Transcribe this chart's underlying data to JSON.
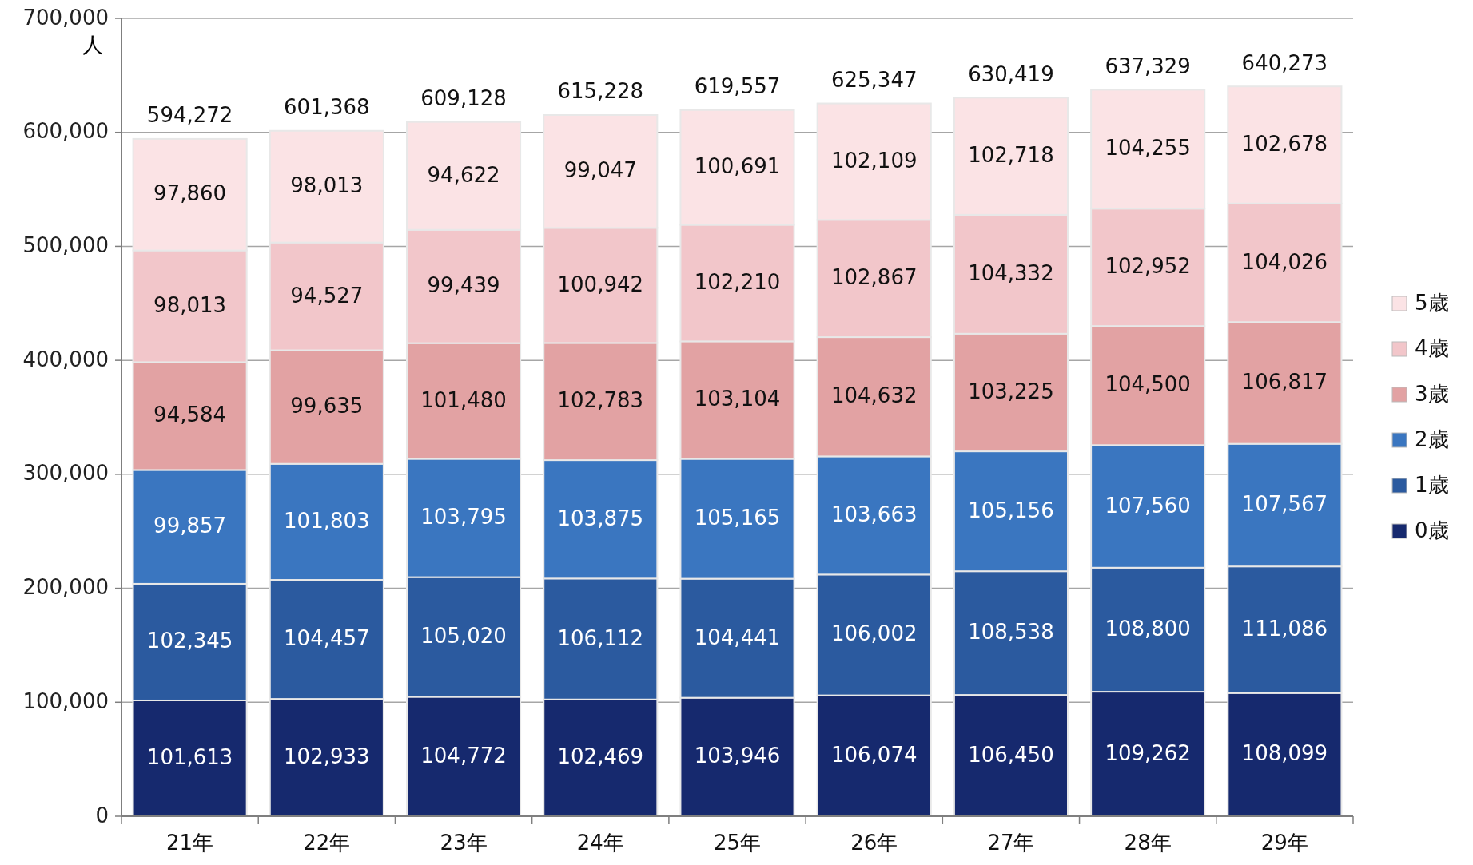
{
  "chart_data": {
    "type": "bar",
    "stacked": true,
    "ylabel": "人",
    "categories": [
      "21年",
      "22年",
      "23年",
      "24年",
      "25年",
      "26年",
      "27年",
      "28年",
      "29年"
    ],
    "series": [
      {
        "name": "0歳",
        "color": "#16296e",
        "values": [
          101613,
          102933,
          104772,
          102469,
          103946,
          106074,
          106450,
          109262,
          108099
        ],
        "value_labels": [
          "101,613",
          "102,933",
          "104,772",
          "102,469",
          "103,946",
          "106,074",
          "106,450",
          "109,262",
          "108,099"
        ]
      },
      {
        "name": "1歳",
        "color": "#2b5a9f",
        "values": [
          102345,
          104457,
          105020,
          106112,
          104441,
          106002,
          108538,
          108800,
          111086
        ],
        "value_labels": [
          "102,345",
          "104,457",
          "105,020",
          "106,112",
          "104,441",
          "106,002",
          "108,538",
          "108,800",
          "111,086"
        ]
      },
      {
        "name": "2歳",
        "color": "#3a76c0",
        "values": [
          99857,
          101803,
          103795,
          103875,
          105165,
          103663,
          105156,
          107560,
          107567
        ],
        "value_labels": [
          "99,857",
          "101,803",
          "103,795",
          "103,875",
          "105,165",
          "103,663",
          "105,156",
          "107,560",
          "107,567"
        ]
      },
      {
        "name": "3歳",
        "color": "#e2a2a3",
        "values": [
          94584,
          99635,
          101480,
          102783,
          103104,
          104632,
          103225,
          104500,
          106817
        ],
        "value_labels": [
          "94,584",
          "99,635",
          "101,480",
          "102,783",
          "103,104",
          "104,632",
          "103,225",
          "104,500",
          "106,817"
        ]
      },
      {
        "name": "4歳",
        "color": "#f2c6ca",
        "values": [
          98013,
          94527,
          99439,
          100942,
          102210,
          102867,
          104332,
          102952,
          104026
        ],
        "value_labels": [
          "98,013",
          "94,527",
          "99,439",
          "100,942",
          "102,210",
          "102,867",
          "104,332",
          "102,952",
          "104,026"
        ]
      },
      {
        "name": "5歳",
        "color": "#fbe3e5",
        "values": [
          97860,
          98013,
          94622,
          99047,
          100691,
          102109,
          102718,
          104255,
          102678
        ],
        "value_labels": [
          "97,860",
          "98,013",
          "94,622",
          "99,047",
          "100,691",
          "102,109",
          "102,718",
          "104,255",
          "102,678"
        ]
      }
    ],
    "totals": [
      "594,272",
      "601,368",
      "609,128",
      "615,228",
      "619,557",
      "625,347",
      "630,419",
      "637,329",
      "640,273"
    ],
    "ylim": [
      0,
      700000
    ],
    "yticks": [
      0,
      {
        "value": 100000,
        "label": "100,000"
      },
      {
        "value": 200000,
        "label": "200,000"
      },
      {
        "value": 300000,
        "label": "300,000"
      },
      {
        "value": 400000,
        "label": "400,000"
      },
      {
        "value": 500000,
        "label": "500,000"
      },
      {
        "value": 600000,
        "label": "600,000"
      },
      {
        "value": 700000,
        "label": "700,000"
      }
    ],
    "grid": "y",
    "legend": "right"
  }
}
